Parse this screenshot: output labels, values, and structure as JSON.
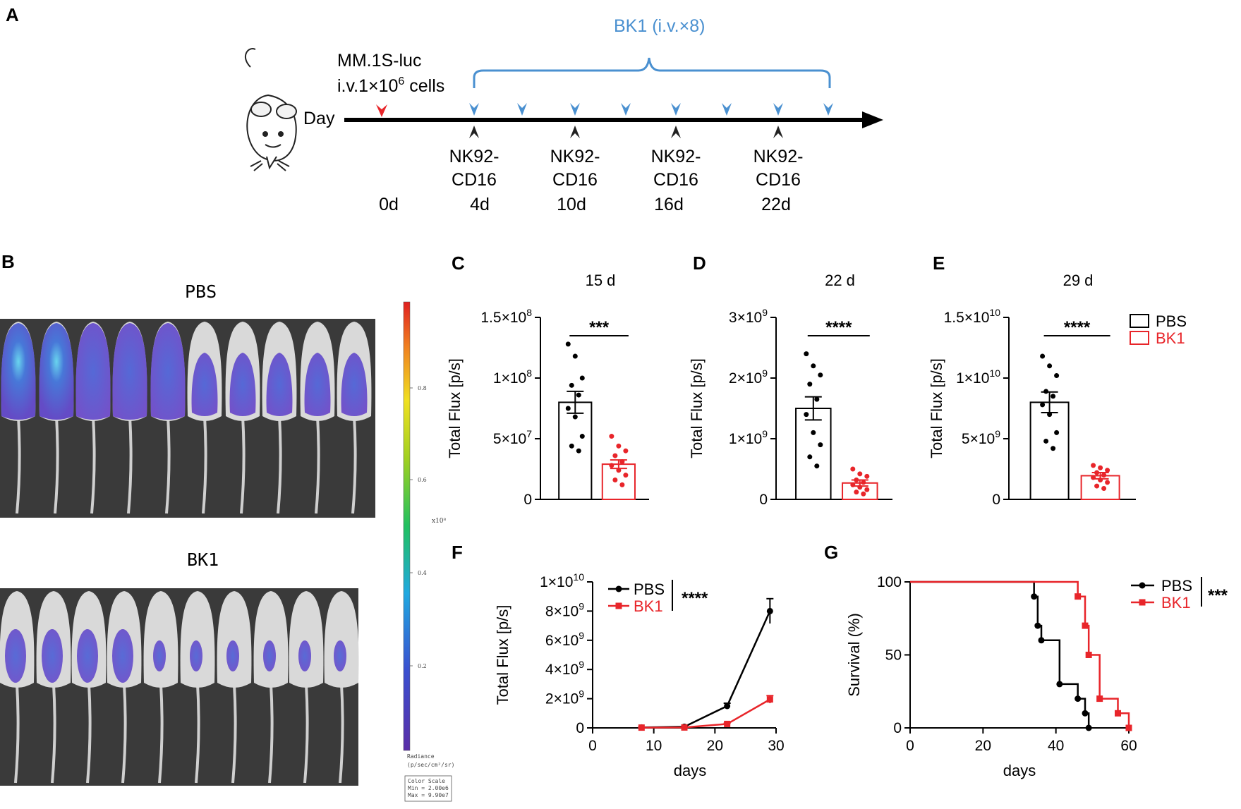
{
  "panels": {
    "A": {
      "letter": "A",
      "cells_label": "MM.1S-luc",
      "dose_label_prefix": "i.v.1×10",
      "dose_exponent": "6",
      "dose_label_suffix": " cells",
      "day_label": "Day",
      "bk1_label": "BK1 (i.v.×8)",
      "bk1_doses": 8,
      "nk_label_line1": "NK92-",
      "nk_label_line2": "CD16",
      "days": [
        "0d",
        "4d",
        "10d",
        "16d",
        "22d"
      ],
      "colors": {
        "tumor_arrow": "#e8252a",
        "bk1": "#4a90d0",
        "nk": "#222222"
      }
    },
    "B": {
      "letter": "B",
      "pbs_title": "PBS",
      "bk1_title": "BK1",
      "mice_per_group": 10,
      "colorbar_ticks": [
        "0.8",
        "0.6",
        "0.4",
        "0.2"
      ],
      "colorbar_unit": "x10⁸",
      "colorbar_caption_1": "Radiance",
      "colorbar_caption_2": "(p/sec/cm²/sr)",
      "scale_box_1": "Color Scale",
      "scale_box_2": "Min = 2.00e6",
      "scale_box_3": "Max = 9.90e7"
    },
    "C": {
      "letter": "C"
    },
    "D": {
      "letter": "D"
    },
    "E": {
      "letter": "E"
    },
    "F": {
      "letter": "F"
    },
    "G": {
      "letter": "G"
    }
  },
  "legend_groups": [
    "PBS",
    "BK1"
  ],
  "chart_data": [
    {
      "panel": "C",
      "type": "bar",
      "title": "15 d",
      "ylabel": "Total Flux [p/s]",
      "ylim": [
        0,
        150000000
      ],
      "yticks": [
        {
          "v": 0,
          "m": "0",
          "e": ""
        },
        {
          "v": 50000000,
          "m": "5×10",
          "e": "7"
        },
        {
          "v": 100000000,
          "m": "1×10",
          "e": "8"
        },
        {
          "v": 150000000,
          "m": "1.5×10",
          "e": "8"
        }
      ],
      "categories": [
        "PBS",
        "BK1"
      ],
      "values": [
        80000000,
        29000000
      ],
      "sem": [
        9000000,
        3500000
      ],
      "points": [
        [
          128000000,
          118000000,
          100000000,
          94000000,
          86000000,
          75000000,
          68000000,
          52000000,
          44000000,
          40000000
        ],
        [
          52000000,
          44000000,
          40000000,
          36000000,
          31000000,
          28000000,
          24000000,
          20000000,
          16000000,
          12000000
        ]
      ],
      "significance": "***"
    },
    {
      "panel": "D",
      "type": "bar",
      "title": "22 d",
      "ylabel": "Total Flux [p/s]",
      "ylim": [
        0,
        3000000000
      ],
      "yticks": [
        {
          "v": 0,
          "m": "0",
          "e": ""
        },
        {
          "v": 1000000000,
          "m": "1×10",
          "e": "9"
        },
        {
          "v": 2000000000,
          "m": "2×10",
          "e": "9"
        },
        {
          "v": 3000000000,
          "m": "3×10",
          "e": "9"
        }
      ],
      "categories": [
        "PBS",
        "BK1"
      ],
      "values": [
        1500000000,
        270000000
      ],
      "sem": [
        190000000,
        50000000
      ],
      "points": [
        [
          2400000000,
          2200000000,
          2050000000,
          1900000000,
          1650000000,
          1400000000,
          1100000000,
          900000000,
          700000000,
          550000000
        ],
        [
          500000000,
          420000000,
          380000000,
          320000000,
          280000000,
          240000000,
          200000000,
          160000000,
          120000000,
          90000000
        ]
      ],
      "significance": "****"
    },
    {
      "panel": "E",
      "type": "bar",
      "title": "29 d",
      "ylabel": "Total Flux [p/s]",
      "ylim": [
        0,
        15000000000
      ],
      "yticks": [
        {
          "v": 0,
          "m": "0",
          "e": ""
        },
        {
          "v": 5000000000,
          "m": "5×10",
          "e": "9"
        },
        {
          "v": 10000000000,
          "m": "1×10",
          "e": "10"
        },
        {
          "v": 15000000000,
          "m": "1.5×10",
          "e": "10"
        }
      ],
      "categories": [
        "PBS",
        "BK1"
      ],
      "values": [
        8000000000,
        1950000000
      ],
      "sem": [
        850000000,
        260000000
      ],
      "points": [
        [
          11800000000,
          11000000000,
          10200000000,
          8900000000,
          8500000000,
          7800000000,
          7000000000,
          5500000000,
          4800000000,
          4200000000
        ],
        [
          2800000000,
          2600000000,
          2400000000,
          2200000000,
          2000000000,
          1800000000,
          1600000000,
          1400000000,
          1100000000,
          900000000
        ]
      ],
      "significance": "****",
      "legend": [
        "PBS",
        "BK1"
      ]
    },
    {
      "panel": "F",
      "type": "line",
      "xlabel": "days",
      "ylabel": "Total Flux [p/s]",
      "xlim": [
        0,
        30
      ],
      "ylim": [
        0,
        10000000000
      ],
      "xticks": [
        0,
        10,
        20,
        30
      ],
      "yticks": [
        {
          "v": 0,
          "m": "0",
          "e": ""
        },
        {
          "v": 2000000000,
          "m": "2×10",
          "e": "9"
        },
        {
          "v": 4000000000,
          "m": "4×10",
          "e": "9"
        },
        {
          "v": 6000000000,
          "m": "6×10",
          "e": "9"
        },
        {
          "v": 8000000000,
          "m": "8×10",
          "e": "9"
        },
        {
          "v": 10000000000,
          "m": "1×10",
          "e": "10"
        }
      ],
      "x": [
        8,
        15,
        22,
        29
      ],
      "series": [
        {
          "name": "PBS",
          "color": "#000000",
          "values": [
            30000000,
            80000000,
            1500000000,
            8000000000
          ],
          "sem": [
            10000000,
            10000000,
            190000000,
            850000000
          ]
        },
        {
          "name": "BK1",
          "color": "#e8252a",
          "values": [
            20000000,
            29000000,
            270000000,
            1950000000
          ],
          "sem": [
            10000000,
            5000000,
            50000000,
            260000000
          ]
        }
      ],
      "significance": "****"
    },
    {
      "panel": "G",
      "type": "line",
      "xlabel": "days",
      "ylabel": "Survival (%)",
      "xlim": [
        0,
        60
      ],
      "ylim": [
        0,
        100
      ],
      "xticks": [
        0,
        20,
        40,
        60
      ],
      "yticks": [
        {
          "v": 0,
          "m": "0",
          "e": ""
        },
        {
          "v": 50,
          "m": "50",
          "e": ""
        },
        {
          "v": 100,
          "m": "100",
          "e": ""
        }
      ],
      "series": [
        {
          "name": "PBS",
          "color": "#000000",
          "steps": [
            [
              0,
              100
            ],
            [
              34,
              90
            ],
            [
              35,
              70
            ],
            [
              36,
              60
            ],
            [
              41,
              30
            ],
            [
              46,
              20
            ],
            [
              48,
              10
            ],
            [
              49,
              0
            ]
          ]
        },
        {
          "name": "BK1",
          "color": "#e8252a",
          "steps": [
            [
              0,
              100
            ],
            [
              46,
              90
            ],
            [
              48,
              70
            ],
            [
              49,
              50
            ],
            [
              52,
              20
            ],
            [
              57,
              10
            ],
            [
              60,
              0
            ]
          ]
        }
      ],
      "significance": "***"
    }
  ]
}
